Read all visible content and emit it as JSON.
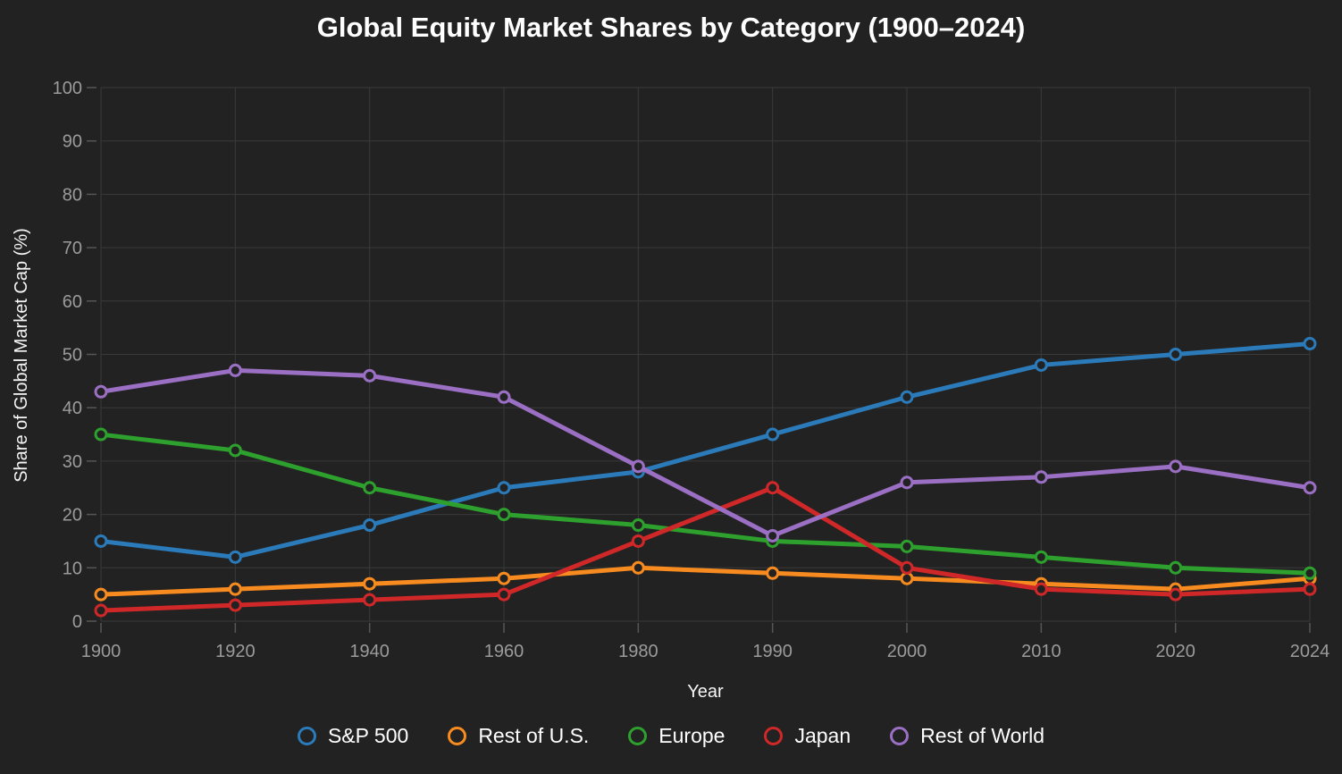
{
  "page": {
    "background_color": "#222222",
    "grid_color": "#3a3a3a",
    "tick_text_color": "#9b9b9b",
    "text_color": "#ffffff"
  },
  "chart_data": {
    "type": "line",
    "title": "Global Equity Market Shares by Category (1900–2024)",
    "xlabel": "Year",
    "ylabel": "Share of Global Market Cap (%)",
    "categories": [
      "1900",
      "1920",
      "1940",
      "1960",
      "1980",
      "1990",
      "2000",
      "2010",
      "2020",
      "2024"
    ],
    "ylim": [
      0,
      100
    ],
    "yticks": [
      0,
      10,
      20,
      30,
      40,
      50,
      60,
      70,
      80,
      90,
      100
    ],
    "grid": true,
    "legend_position": "bottom",
    "marker_style": "open-circle",
    "series": [
      {
        "name": "S&P 500",
        "color": "#2b7bba",
        "values": [
          15,
          12,
          18,
          25,
          28,
          35,
          42,
          48,
          50,
          52
        ]
      },
      {
        "name": "Rest of U.S.",
        "color": "#f78b20",
        "values": [
          5,
          6,
          7,
          8,
          10,
          9,
          8,
          7,
          6,
          8
        ]
      },
      {
        "name": "Europe",
        "color": "#2da02d",
        "values": [
          35,
          32,
          25,
          20,
          18,
          15,
          14,
          12,
          10,
          9
        ]
      },
      {
        "name": "Japan",
        "color": "#d02828",
        "values": [
          2,
          3,
          4,
          5,
          15,
          25,
          10,
          6,
          5,
          6
        ]
      },
      {
        "name": "Rest of World",
        "color": "#9b6fc4",
        "values": [
          43,
          47,
          46,
          42,
          29,
          16,
          26,
          27,
          29,
          25
        ]
      }
    ]
  }
}
